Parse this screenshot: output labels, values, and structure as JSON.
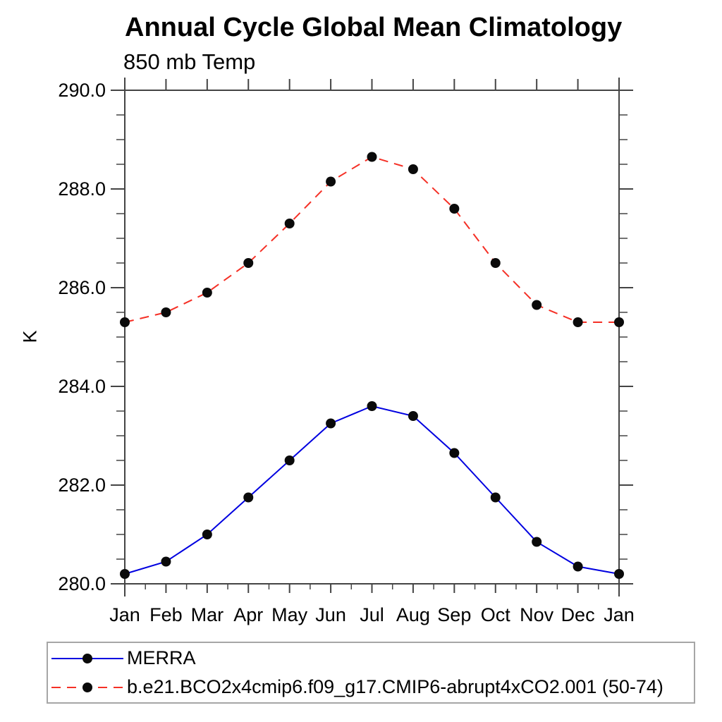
{
  "page": {
    "background": "#ffffff"
  },
  "chart_data": {
    "type": "line",
    "title": "Annual Cycle Global Mean Climatology",
    "subtitle": "850 mb Temp",
    "ylabel": "K",
    "xlabel": "",
    "categories": [
      "Jan",
      "Feb",
      "Mar",
      "Apr",
      "May",
      "Jun",
      "Jul",
      "Aug",
      "Sep",
      "Oct",
      "Nov",
      "Dec",
      "Jan"
    ],
    "ylim": [
      280.0,
      290.0
    ],
    "yticks": [
      280.0,
      282.0,
      284.0,
      286.0,
      288.0,
      290.0
    ],
    "ytick_labels": [
      "280.0",
      "282.0",
      "284.0",
      "286.0",
      "288.0",
      "290.0"
    ],
    "y_minor_step": 0.5,
    "grid": false,
    "legend_position": "bottom-left-box",
    "axis_color": "#444444",
    "text_color": "#000000",
    "marker": "filled-circle",
    "marker_color": "#0a0a0a",
    "series": [
      {
        "name": "MERRA",
        "color": "#0000e0",
        "line_style": "solid",
        "values": [
          280.2,
          280.45,
          281.0,
          281.75,
          282.5,
          283.25,
          283.6,
          283.4,
          282.65,
          281.75,
          280.85,
          280.35,
          280.2
        ]
      },
      {
        "name": "b.e21.BCO2x4cmip6.f09_g17.CMIP6-abrupt4xCO2.001 (50-74)",
        "color": "#f53026",
        "line_style": "dashed",
        "values": [
          285.3,
          285.5,
          285.9,
          286.5,
          287.3,
          288.15,
          288.65,
          288.4,
          287.6,
          286.5,
          285.65,
          285.3,
          285.3
        ]
      }
    ]
  }
}
